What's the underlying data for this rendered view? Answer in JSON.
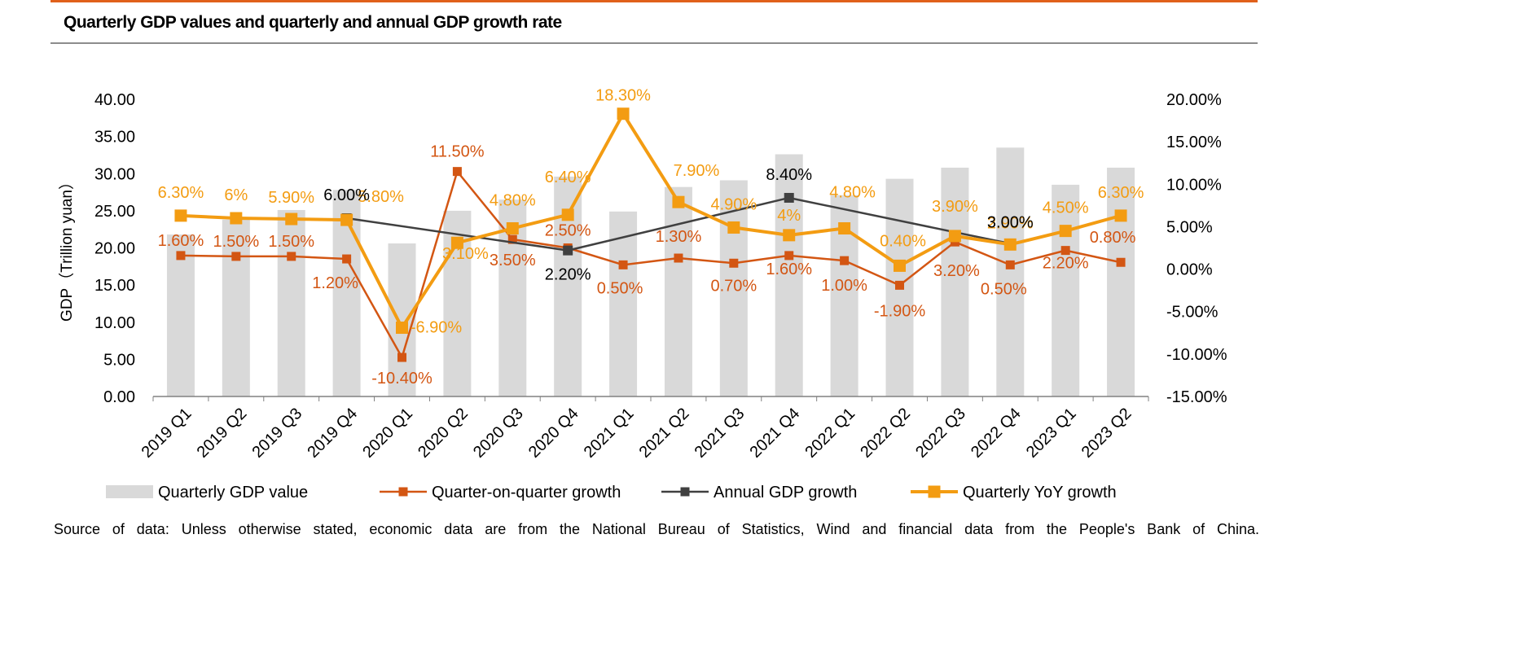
{
  "title": "Quarterly GDP values and quarterly and annual GDP growth rate",
  "source": "Source of data: Unless otherwise stated, economic data are from the National Bureau of Statistics, Wind and financial data from the People's Bank of China.",
  "colors": {
    "accent_rule": "#e0601b",
    "bars": "#d9d9d9",
    "qoq": "#d35613",
    "annual": "#404040",
    "yoy": "#f39c12"
  },
  "chart_data": {
    "type": "bar+line",
    "title": "Quarterly GDP values and quarterly and annual GDP growth rate",
    "categories": [
      "2019 Q1",
      "2019 Q2",
      "2019 Q3",
      "2019 Q4",
      "2020 Q1",
      "2020 Q2",
      "2020 Q3",
      "2020 Q4",
      "2021 Q1",
      "2021 Q2",
      "2021 Q3",
      "2021 Q4",
      "2022 Q1",
      "2022 Q2",
      "2022 Q3",
      "2022 Q4",
      "2023 Q1",
      "2023 Q2"
    ],
    "ylabel_left": "GDP（Trillion yuan）",
    "ylim_left": [
      0,
      40
    ],
    "yticks_left": [
      "0.00",
      "5.00",
      "10.00",
      "15.00",
      "20.00",
      "25.00",
      "30.00",
      "35.00",
      "40.00"
    ],
    "ylim_right": [
      -15,
      20
    ],
    "yticks_right": [
      "-15.00%",
      "-10.00%",
      "-5.00%",
      "0.00%",
      "5.00%",
      "10.00%",
      "15.00%",
      "20.00%"
    ],
    "series": [
      {
        "name": "Quarterly GDP value",
        "kind": "bar",
        "axis": "left",
        "values": [
          21.8,
          23.8,
          25.1,
          27.8,
          20.6,
          25.0,
          26.5,
          29.6,
          24.9,
          28.2,
          29.1,
          32.6,
          27.1,
          29.3,
          30.8,
          33.5,
          28.5,
          30.8
        ]
      },
      {
        "name": "Quarter-on-quarter growth",
        "kind": "line",
        "axis": "right",
        "values": [
          1.6,
          1.5,
          1.5,
          1.2,
          -10.4,
          11.5,
          3.5,
          2.5,
          0.5,
          1.3,
          0.7,
          1.6,
          1.0,
          -1.9,
          3.2,
          0.5,
          2.2,
          0.8
        ],
        "labels": [
          "1.60%",
          "1.50%",
          "1.50%",
          "1.20%",
          "-10.40%",
          "11.50%",
          "3.50%",
          "2.50%",
          "0.50%",
          "1.30%",
          "0.70%",
          "1.60%",
          "1.00%",
          "-1.90%",
          "3.20%",
          "0.50%",
          "2.20%",
          "0.80%"
        ]
      },
      {
        "name": "Annual GDP growth",
        "kind": "line",
        "axis": "right",
        "points": [
          [
            3,
            6.0
          ],
          [
            7,
            2.2
          ],
          [
            11,
            8.4
          ],
          [
            15,
            3.0
          ]
        ],
        "labels": [
          "6.00%",
          "2.20%",
          "8.40%",
          "3.00%"
        ]
      },
      {
        "name": "Quarterly YoY growth",
        "kind": "line",
        "axis": "right",
        "values": [
          6.3,
          6.0,
          5.9,
          5.8,
          -6.9,
          3.1,
          4.8,
          6.4,
          18.3,
          7.9,
          4.9,
          4.0,
          4.8,
          0.4,
          3.9,
          2.9,
          4.5,
          6.3
        ],
        "labels": [
          "6.30%",
          "6%",
          "5.90%",
          "5.80%",
          "-6.90%",
          "3.10%",
          "4.80%",
          "6.40%",
          "18.30%",
          "7.90%",
          "4.90%",
          "4%",
          "4.80%",
          "0.40%",
          "3.90%",
          "2.90%",
          "4.50%",
          "6.30%"
        ]
      }
    ],
    "legend": [
      "Quarterly GDP value",
      "Quarter-on-quarter growth",
      "Annual GDP growth",
      "Quarterly YoY growth"
    ],
    "legend_position": "bottom"
  }
}
